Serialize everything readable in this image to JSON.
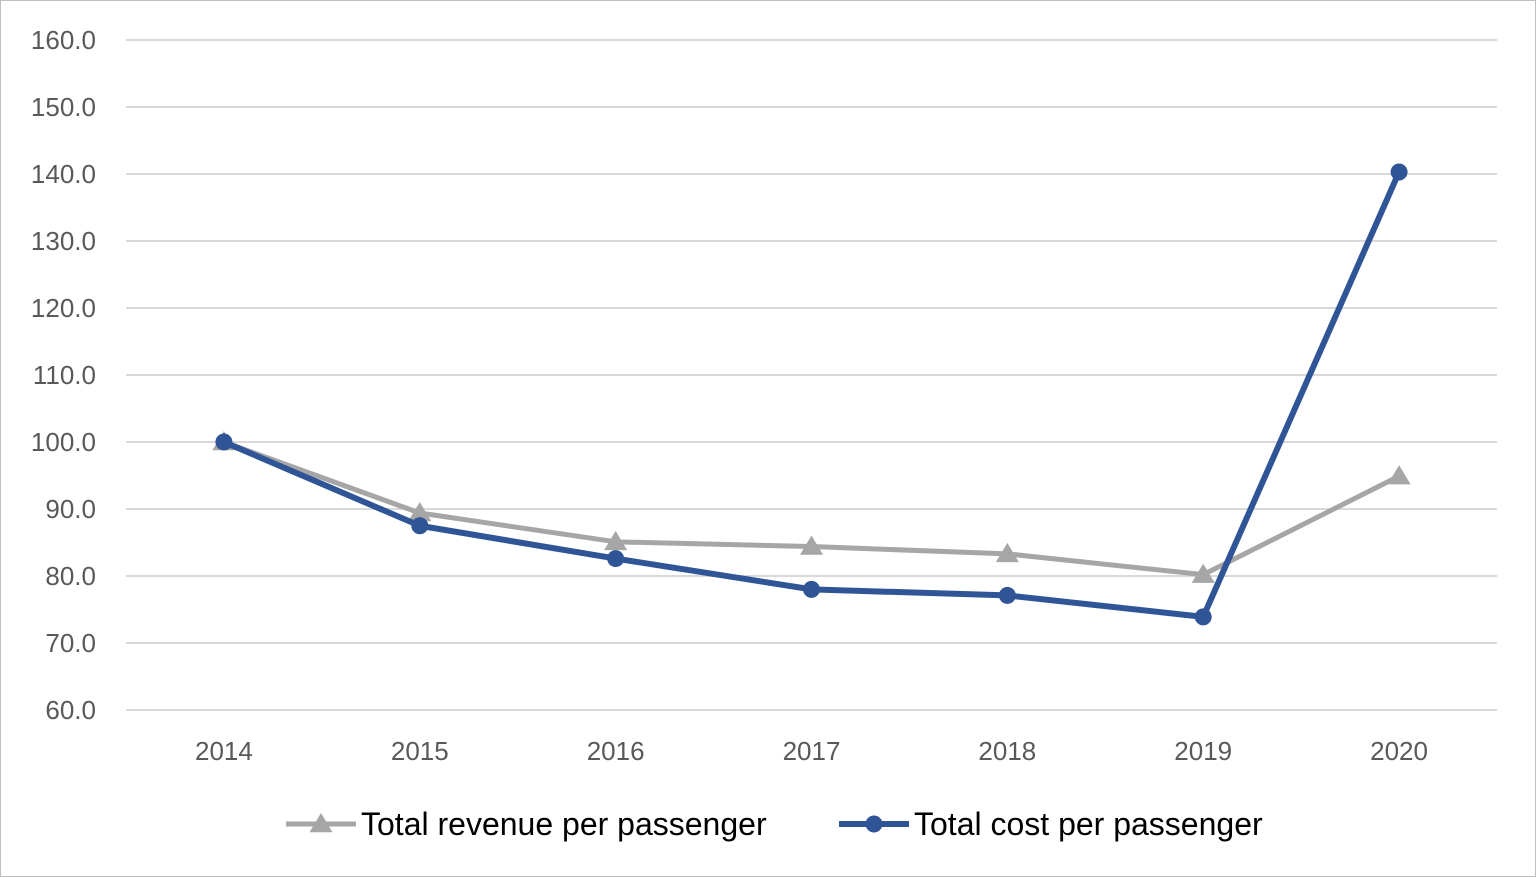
{
  "chart_data": {
    "type": "line",
    "categories": [
      "2014",
      "2015",
      "2016",
      "2017",
      "2018",
      "2019",
      "2020"
    ],
    "series": [
      {
        "name": "Total revenue per passenger",
        "values": [
          100.0,
          89.4,
          85.1,
          84.4,
          83.3,
          80.2,
          94.9
        ],
        "color": "#a6a6a6",
        "marker": "triangle"
      },
      {
        "name": "Total cost per passenger",
        "values": [
          100.0,
          87.5,
          82.6,
          78.0,
          77.1,
          73.9,
          140.3
        ],
        "color": "#2f5597",
        "marker": "circle"
      }
    ],
    "yticks": [
      "60.0",
      "70.0",
      "80.0",
      "90.0",
      "100.0",
      "110.0",
      "120.0",
      "130.0",
      "140.0",
      "150.0",
      "160.0"
    ],
    "ylim": [
      60,
      160
    ],
    "grid": true,
    "legend": "bottom",
    "title": "",
    "xlabel": "",
    "ylabel": ""
  }
}
